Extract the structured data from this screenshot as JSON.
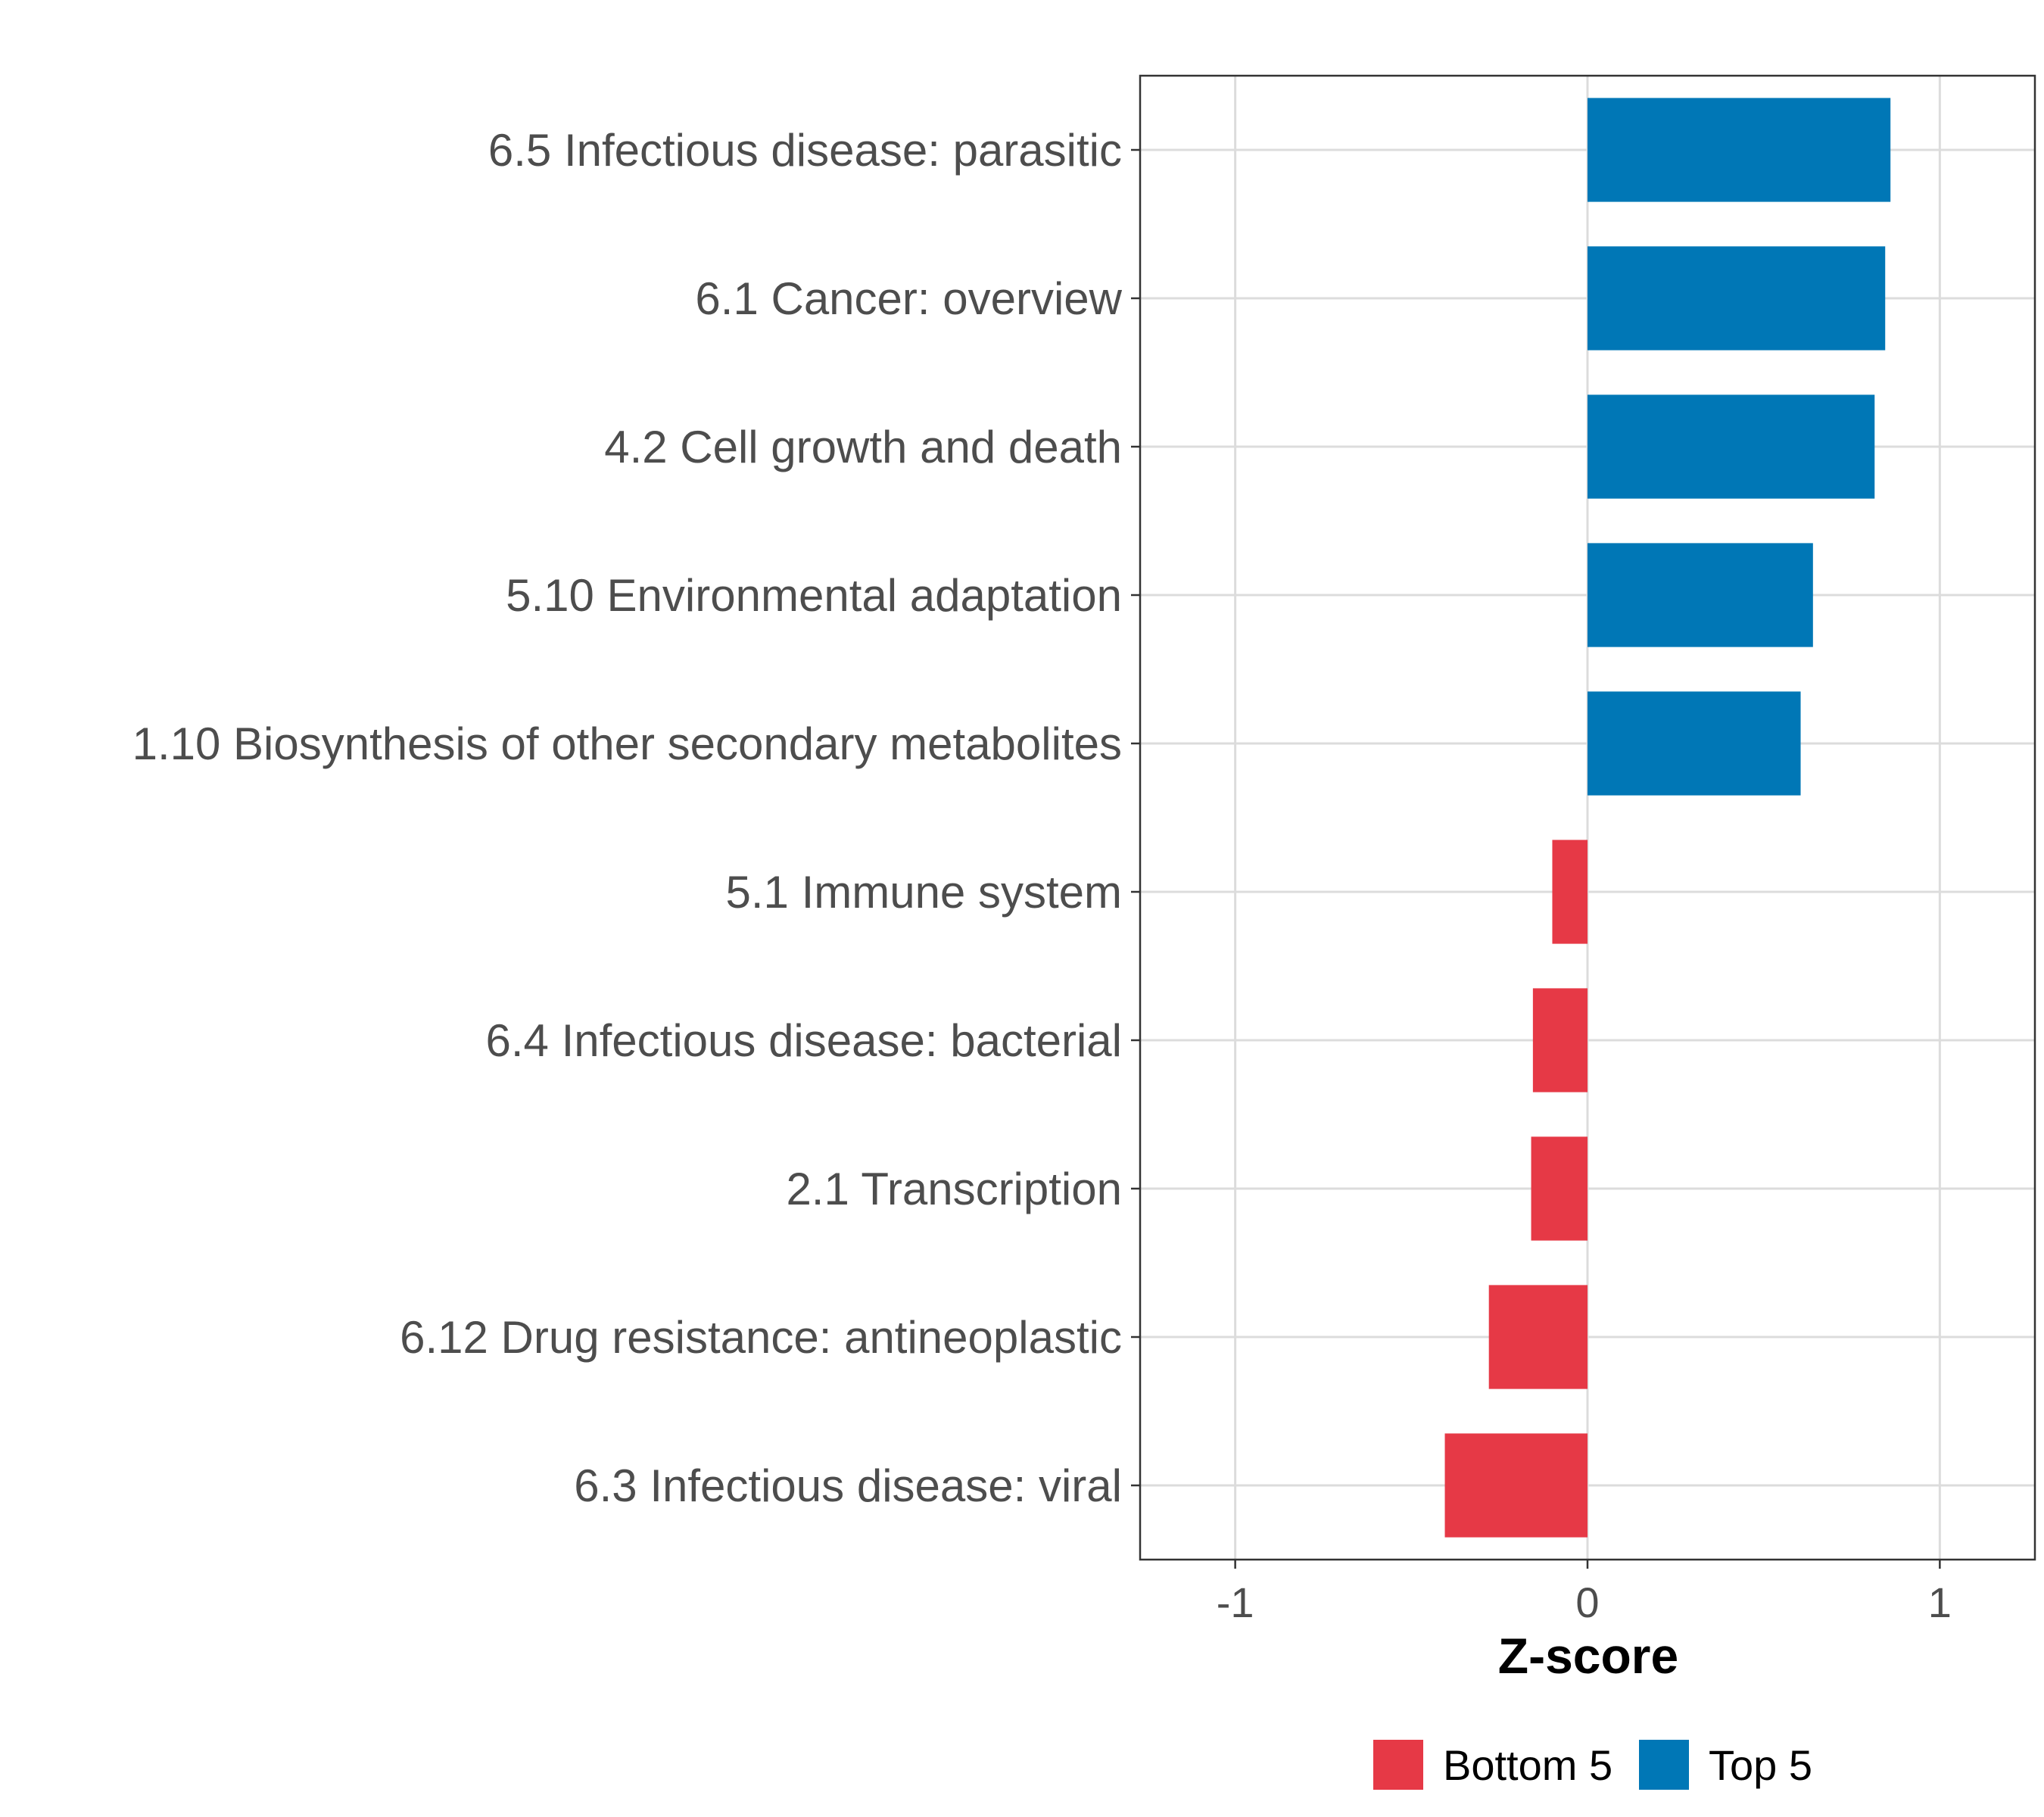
{
  "chart_data": {
    "type": "bar",
    "orientation": "horizontal",
    "categories": [
      "6.5 Infectious disease: parasitic",
      "6.1 Cancer: overview",
      "4.2 Cell growth and death",
      "5.10 Environmental adaptation",
      "1.10 Biosynthesis of other secondary metabolites",
      "5.1 Immune system",
      "6.4 Infectious disease: bacterial",
      "2.1 Transcription",
      "6.12 Drug resistance: antineoplastic",
      "6.3 Infectious disease: viral"
    ],
    "values": [
      0.86,
      0.845,
      0.815,
      0.64,
      0.605,
      -0.1,
      -0.155,
      -0.16,
      -0.28,
      -0.405
    ],
    "groups": [
      "Top 5",
      "Top 5",
      "Top 5",
      "Top 5",
      "Top 5",
      "Bottom 5",
      "Bottom 5",
      "Bottom 5",
      "Bottom 5",
      "Bottom 5"
    ],
    "xlabel": "Z-score",
    "ylabel": "",
    "xlim": [
      -1.27,
      1.27
    ],
    "xticks": [
      -1,
      0,
      1
    ],
    "xtick_labels": [
      "-1",
      "0",
      "1"
    ],
    "grid": true,
    "legend": {
      "placement": "bottom",
      "entries": [
        {
          "label": "Bottom 5",
          "color": "#E63946"
        },
        {
          "label": "Top 5",
          "color": "#0077B6"
        }
      ]
    },
    "colors": {
      "Top 5": "#0077B6",
      "Bottom 5": "#E63946"
    }
  }
}
